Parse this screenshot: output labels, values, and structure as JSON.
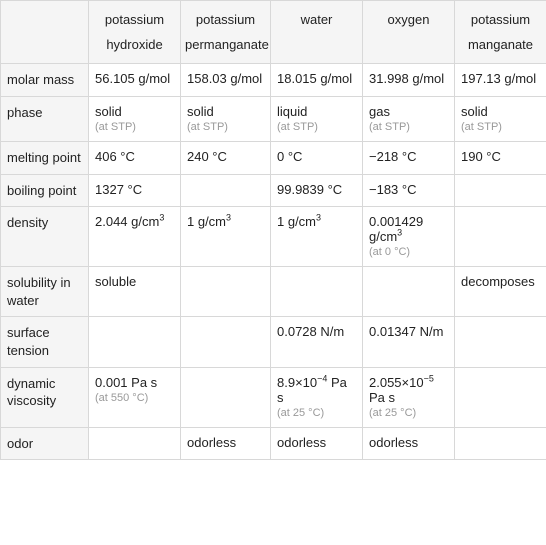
{
  "table": {
    "columns": [
      "potassium hydroxide",
      "potassium permanganate",
      "water",
      "oxygen",
      "potassium manganate"
    ],
    "rows": [
      {
        "label": "molar mass",
        "cells": [
          {
            "main": "56.105 g/mol"
          },
          {
            "main": "158.03 g/mol"
          },
          {
            "main": "18.015 g/mol"
          },
          {
            "main": "31.998 g/mol"
          },
          {
            "main": "197.13 g/mol"
          }
        ]
      },
      {
        "label": "phase",
        "cells": [
          {
            "main": "solid",
            "sub": "(at STP)"
          },
          {
            "main": "solid",
            "sub": "(at STP)"
          },
          {
            "main": "liquid",
            "sub": "(at STP)"
          },
          {
            "main": "gas",
            "sub": "(at STP)"
          },
          {
            "main": "solid",
            "sub": "(at STP)"
          }
        ]
      },
      {
        "label": "melting point",
        "cells": [
          {
            "main": "406 °C"
          },
          {
            "main": "240 °C"
          },
          {
            "main": "0 °C"
          },
          {
            "main": "−218 °C"
          },
          {
            "main": "190 °C"
          }
        ]
      },
      {
        "label": "boiling point",
        "cells": [
          {
            "main": "1327 °C"
          },
          {
            "main": ""
          },
          {
            "main": "99.9839 °C"
          },
          {
            "main": "−183 °C"
          },
          {
            "main": ""
          }
        ]
      },
      {
        "label": "density",
        "cells": [
          {
            "html": "2.044 g/cm<sup>3</sup>"
          },
          {
            "html": "1 g/cm<sup>3</sup>"
          },
          {
            "html": "1 g/cm<sup>3</sup>"
          },
          {
            "html": "0.001429 g/cm<sup>3</sup>",
            "sub": "(at 0 °C)"
          },
          {
            "main": ""
          }
        ]
      },
      {
        "label": "solubility in water",
        "cells": [
          {
            "main": "soluble"
          },
          {
            "main": ""
          },
          {
            "main": ""
          },
          {
            "main": ""
          },
          {
            "main": "decomposes"
          }
        ]
      },
      {
        "label": "surface tension",
        "cells": [
          {
            "main": ""
          },
          {
            "main": ""
          },
          {
            "main": "0.0728 N/m"
          },
          {
            "main": "0.01347 N/m"
          },
          {
            "main": ""
          }
        ]
      },
      {
        "label": "dynamic viscosity",
        "cells": [
          {
            "main": "0.001 Pa s",
            "sub": "(at 550 °C)"
          },
          {
            "main": ""
          },
          {
            "html": "8.9×10<sup>−4</sup> Pa s",
            "sub": "(at 25 °C)"
          },
          {
            "html": "2.055×10<sup>−5</sup> Pa s",
            "sub": "(at 25 °C)"
          },
          {
            "main": ""
          }
        ]
      },
      {
        "label": "odor",
        "cells": [
          {
            "main": ""
          },
          {
            "main": "odorless"
          },
          {
            "main": "odorless"
          },
          {
            "main": "odorless"
          },
          {
            "main": ""
          }
        ]
      }
    ],
    "style": {
      "border_color": "#d8d8d8",
      "header_bg": "#f5f5f5",
      "cell_bg": "#ffffff",
      "text_color": "#222222",
      "sub_color": "#999999",
      "font_size_main": 13,
      "font_size_sub": 11
    }
  }
}
